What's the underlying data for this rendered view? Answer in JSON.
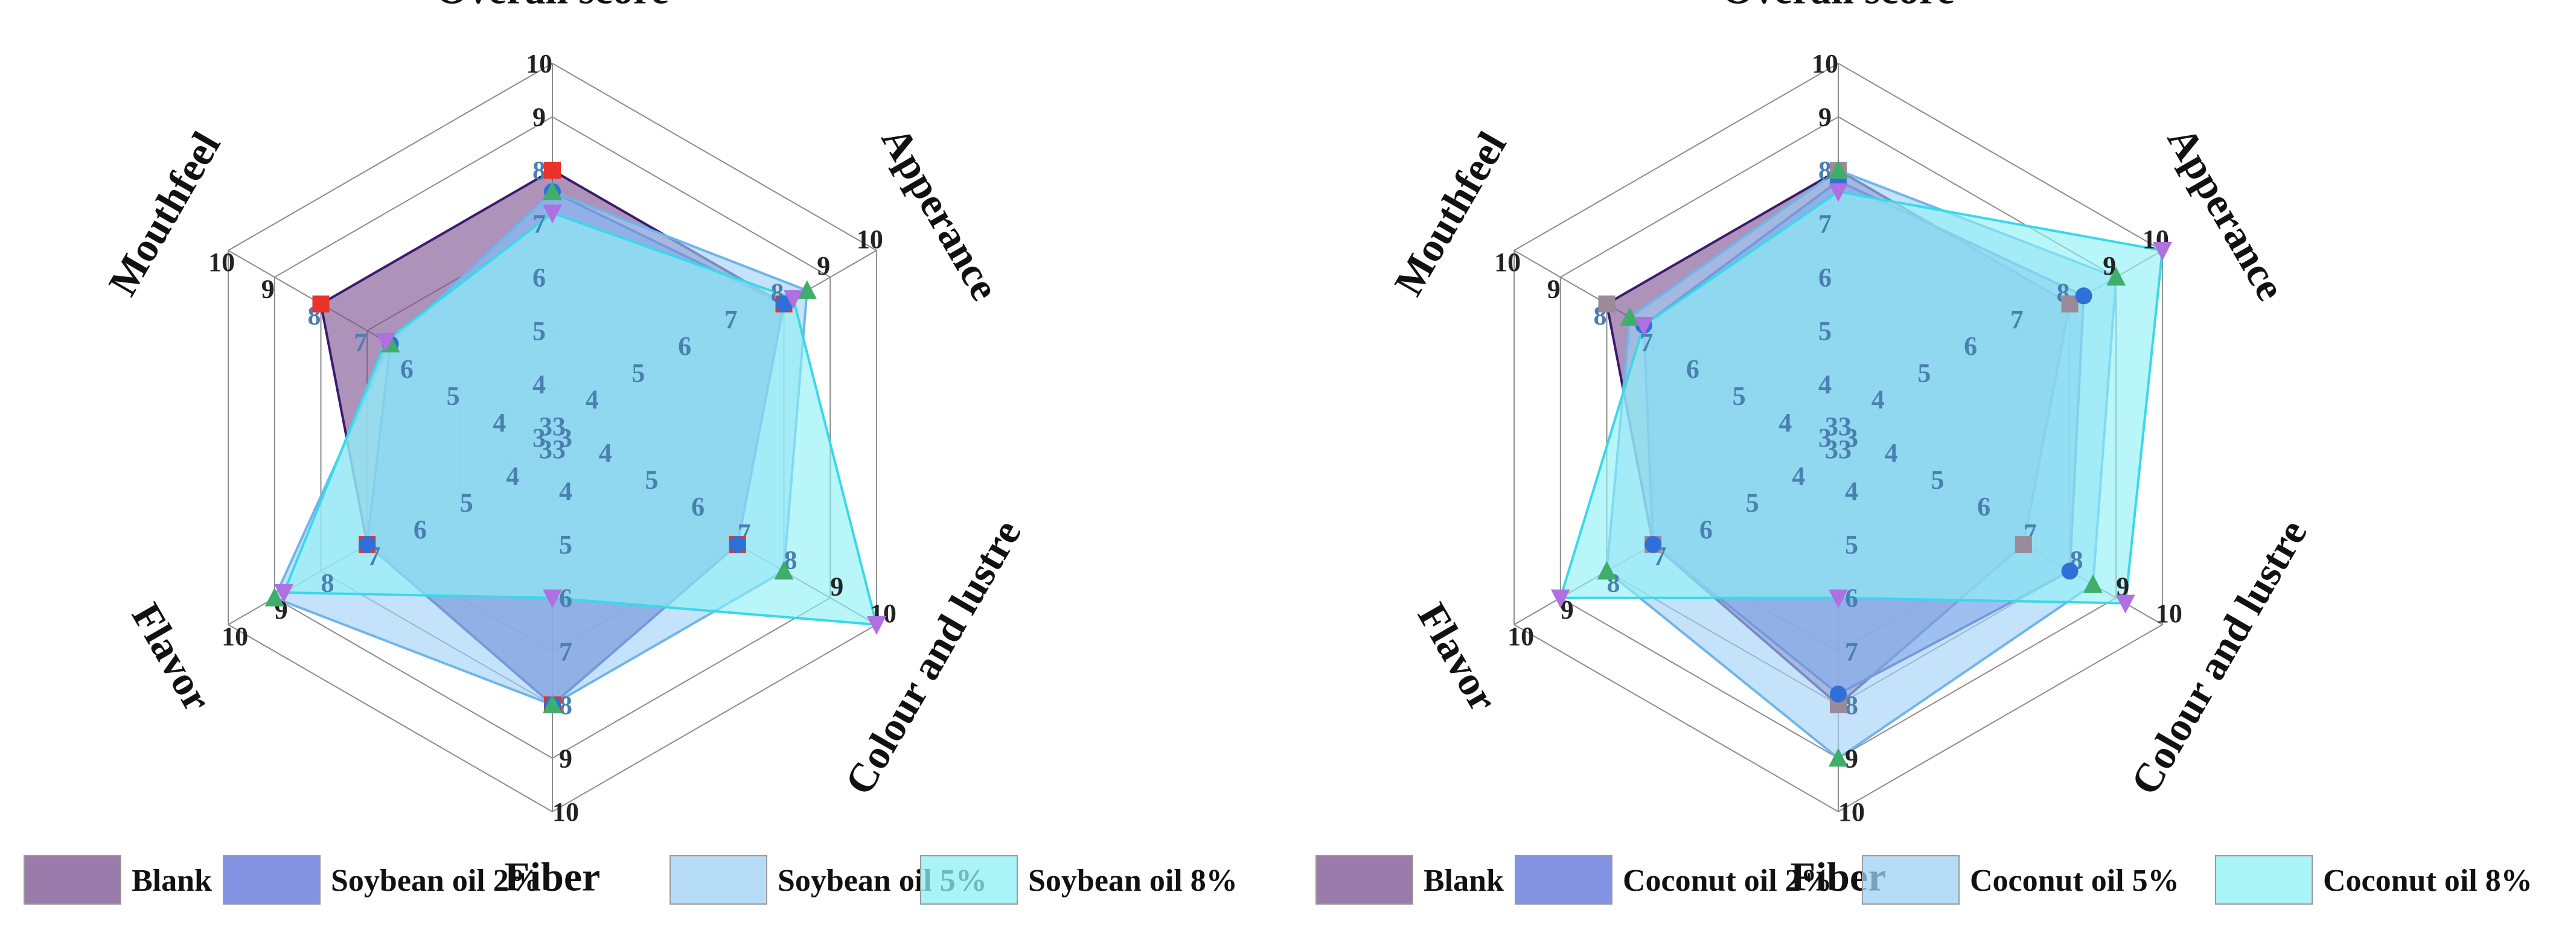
{
  "chart_data": [
    {
      "type": "radar",
      "axes": [
        "Overall score",
        "Apperance",
        "Colour and lustre",
        "Fiber",
        "Flavor",
        "Mouthfeel"
      ],
      "rlim": [
        3,
        10
      ],
      "ticks": [
        3,
        4,
        5,
        6,
        7,
        8,
        9,
        10
      ],
      "series": [
        {
          "name": "Blank",
          "fill": "#7a4f8f",
          "stroke": "#3b1a6e",
          "marker": "square",
          "marker_color": "#e8322a",
          "values": [
            8.0,
            8.0,
            7.0,
            8.0,
            7.0,
            8.0
          ]
        },
        {
          "name": "Soybean oil 2%",
          "fill": "#5a6fd8",
          "stroke": "#2f3fb5",
          "marker": "circle",
          "marker_color": "#2f6fd8",
          "values": [
            7.6,
            8.0,
            7.0,
            8.0,
            7.0,
            6.5
          ]
        },
        {
          "name": "Soybean oil 5%",
          "fill": "#9fd0f5",
          "stroke": "#6fb5ea",
          "marker": "triangle-up",
          "marker_color": "#3fae6a",
          "values": [
            7.6,
            8.5,
            8.0,
            8.0,
            9.0,
            6.5
          ]
        },
        {
          "name": "Soybean oil 8%",
          "fill": "#8ef0f5",
          "stroke": "#3ad8e8",
          "marker": "triangle-down",
          "marker_color": "#b070e0",
          "values": [
            7.2,
            8.2,
            10.0,
            6.0,
            8.8,
            6.6
          ]
        }
      ],
      "legend": [
        "Blank",
        "Soybean oil 2%",
        "Soybean oil 5%",
        "Soybean oil 8%"
      ]
    },
    {
      "type": "radar",
      "axes": [
        "Overall score",
        "Apperance",
        "Colour and lustre",
        "Fiber",
        "Flavor",
        "Mouthfeel"
      ],
      "rlim": [
        3,
        10
      ],
      "ticks": [
        3,
        4,
        5,
        6,
        7,
        8,
        9,
        10
      ],
      "series": [
        {
          "name": "Blank",
          "fill": "#7a4f8f",
          "stroke": "#3b1a6e",
          "marker": "square",
          "marker_color": "#9a8a9a",
          "values": [
            8.0,
            8.0,
            7.0,
            8.0,
            7.0,
            8.0
          ]
        },
        {
          "name": "Coconut oil 2%",
          "fill": "#5a6fd8",
          "stroke": "#2f3fb5",
          "marker": "circle",
          "marker_color": "#2f6fd8",
          "values": [
            7.8,
            8.3,
            8.0,
            7.8,
            7.0,
            7.2
          ]
        },
        {
          "name": "Coconut oil 5%",
          "fill": "#9fd0f5",
          "stroke": "#6fb5ea",
          "marker": "triangle-up",
          "marker_color": "#3fae6a",
          "values": [
            8.0,
            9.0,
            8.5,
            9.0,
            8.0,
            7.5
          ]
        },
        {
          "name": "Coconut oil 8%",
          "fill": "#8ef0f5",
          "stroke": "#3ad8e8",
          "marker": "triangle-down",
          "marker_color": "#b070e0",
          "values": [
            7.6,
            10.0,
            9.2,
            6.0,
            9.0,
            7.2
          ]
        }
      ],
      "legend": [
        "Blank",
        "Coconut oil 2%",
        "Coconut oil 5%",
        "Coconut oil 8%"
      ]
    }
  ]
}
